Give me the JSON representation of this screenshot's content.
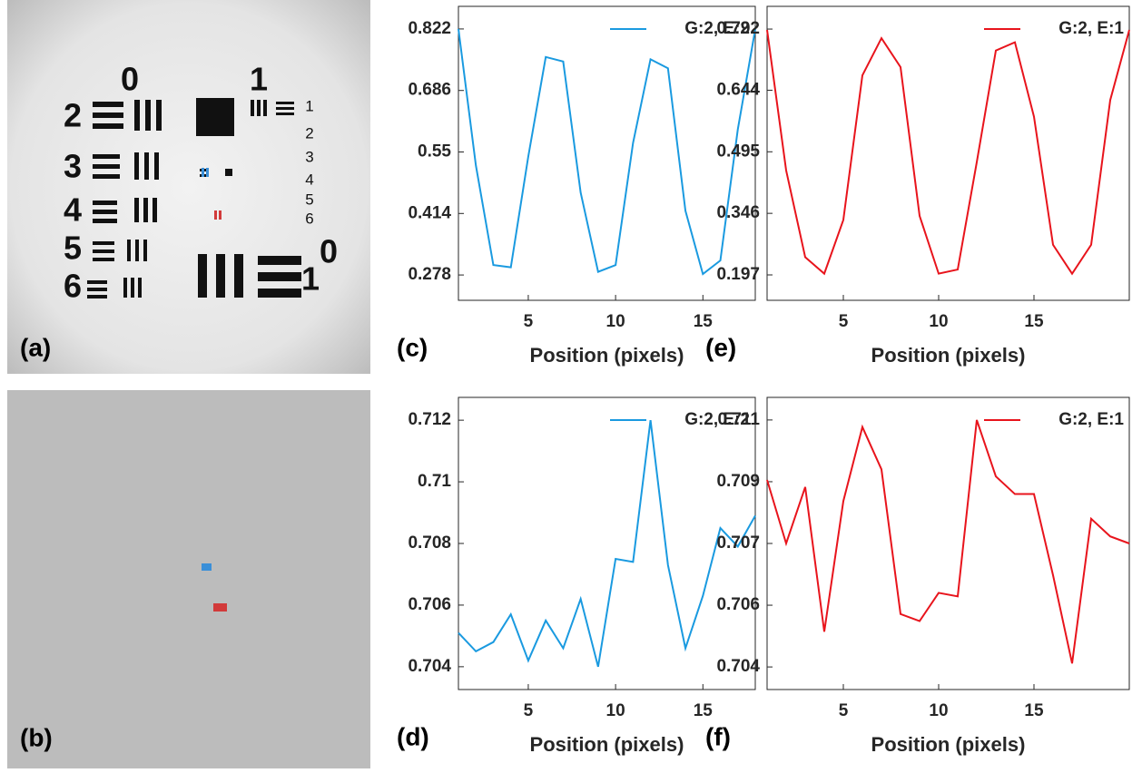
{
  "panels": [
    "(a)",
    "(b)"
  ],
  "target_labels": [
    "0",
    "1",
    "2",
    "3",
    "4",
    "5",
    "6",
    "1",
    "2",
    "3",
    "4",
    "5",
    "6",
    "0",
    "1"
  ],
  "chart_data": [
    {
      "type": "line",
      "panel": "(c)",
      "xlabel": "Position (pixels)",
      "legend": "upper right",
      "x": [
        1,
        2,
        3,
        4,
        5,
        6,
        7,
        8,
        9,
        10,
        11,
        12,
        13,
        14,
        15,
        16,
        17,
        18
      ],
      "series": [
        {
          "name": "G:2, E:2",
          "color": "#1a9ae0",
          "values": [
            0.822,
            0.52,
            0.3,
            0.295,
            0.54,
            0.76,
            0.75,
            0.46,
            0.285,
            0.3,
            0.57,
            0.755,
            0.735,
            0.42,
            0.28,
            0.31,
            0.6,
            0.822
          ]
        }
      ],
      "xlim": [
        1,
        18
      ],
      "xticks": [
        5,
        10,
        15
      ],
      "ylim": [
        0.222,
        0.872
      ],
      "yticks": [
        0.278,
        0.414,
        0.55,
        0.686,
        0.822
      ]
    },
    {
      "type": "line",
      "panel": "(e)",
      "xlabel": "Position (pixels)",
      "legend": "upper right",
      "x": [
        1,
        2,
        3,
        4,
        5,
        6,
        7,
        8,
        9,
        10,
        11,
        12,
        13,
        14,
        15,
        16,
        17,
        18,
        19,
        20
      ],
      "series": [
        {
          "name": "G:2, E:1",
          "color": "#e8141c",
          "values": [
            0.79,
            0.45,
            0.24,
            0.2,
            0.33,
            0.68,
            0.77,
            0.7,
            0.34,
            0.2,
            0.21,
            0.47,
            0.74,
            0.76,
            0.58,
            0.27,
            0.2,
            0.27,
            0.62,
            0.79
          ]
        }
      ],
      "xlim": [
        1,
        20
      ],
      "xticks": [
        5,
        10,
        15
      ],
      "ylim": [
        0.1355,
        0.847
      ],
      "yticks": [
        0.197,
        0.346,
        0.495,
        0.644,
        0.792
      ]
    },
    {
      "type": "line",
      "panel": "(d)",
      "xlabel": "Position (pixels)",
      "legend": "upper right",
      "x": [
        1,
        2,
        3,
        4,
        5,
        6,
        7,
        8,
        9,
        10,
        11,
        12,
        13,
        14,
        15,
        16,
        17,
        18
      ],
      "series": [
        {
          "name": "G:2, E:2",
          "color": "#1a9ae0",
          "values": [
            0.7051,
            0.7045,
            0.7048,
            0.7057,
            0.7042,
            0.7055,
            0.7046,
            0.7062,
            0.704,
            0.7075,
            0.7074,
            0.712,
            0.7073,
            0.7046,
            0.7063,
            0.7085,
            0.7079,
            0.7089
          ]
        }
      ],
      "xlim": [
        1,
        18
      ],
      "xticks": [
        5,
        10,
        15
      ],
      "ylim": [
        0.70326,
        0.71274
      ],
      "yticks": [
        0.704,
        0.706,
        0.708,
        0.71,
        0.712
      ]
    },
    {
      "type": "line",
      "panel": "(f)",
      "xlabel": "Position (pixels)",
      "legend": "upper right",
      "x": [
        1,
        2,
        3,
        4,
        5,
        6,
        7,
        8,
        9,
        10,
        11,
        12,
        13,
        14,
        15,
        16,
        17,
        18,
        19,
        20
      ],
      "series": [
        {
          "name": "G:2, E:1",
          "color": "#e8141c",
          "values": [
            0.7092,
            0.7074,
            0.709,
            0.7049,
            0.7086,
            0.7107,
            0.7095,
            0.7054,
            0.7052,
            0.706,
            0.7059,
            0.7109,
            0.7093,
            0.7088,
            0.7088,
            0.7065,
            0.704,
            0.7081,
            0.7076,
            0.7074
          ]
        }
      ],
      "xlim": [
        1,
        20
      ],
      "xticks": [
        5,
        10,
        15
      ],
      "ylim": [
        0.70326,
        0.71154
      ],
      "yticks": [
        {
          "value": 0.7039,
          "label": "0.704"
        },
        {
          "value": 0.70565,
          "label": "0.706"
        },
        {
          "value": 0.7074,
          "label": "0.707"
        },
        {
          "value": 0.70915,
          "label": "0.709"
        },
        {
          "value": 0.7109,
          "label": "0.711"
        }
      ]
    }
  ]
}
